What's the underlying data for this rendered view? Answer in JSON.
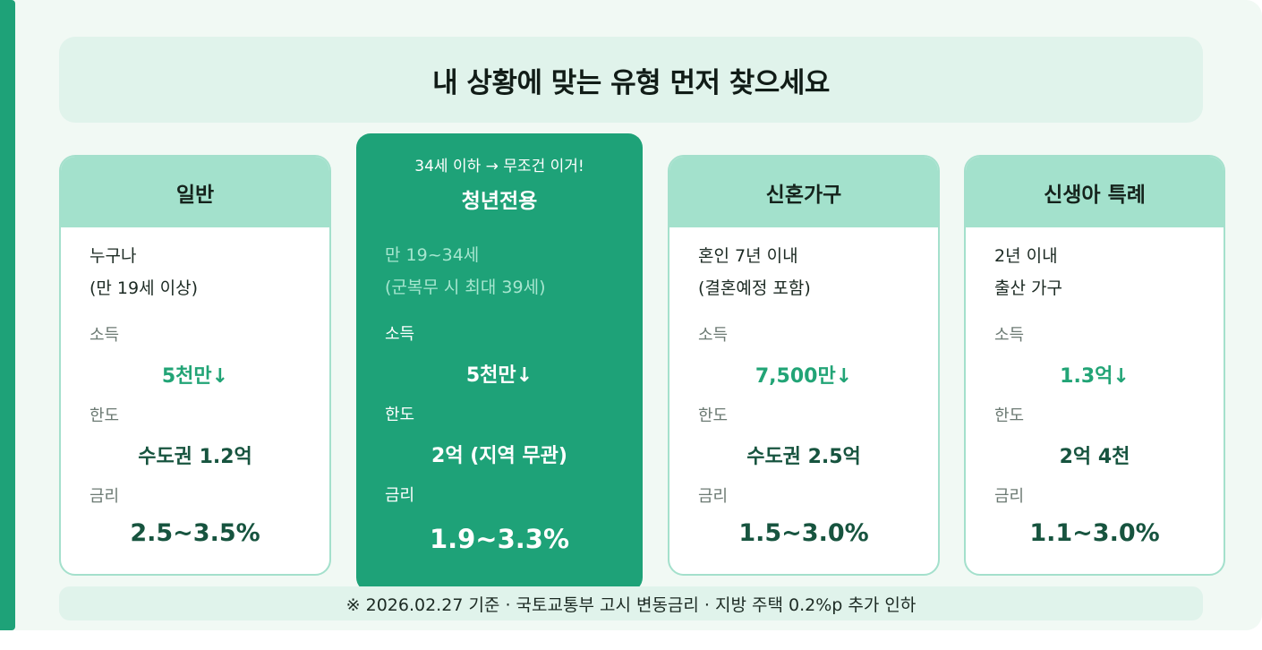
{
  "title": "내 상황에 맞는 유형 먼저 찾으세요",
  "labels": {
    "income": "소득",
    "limit": "한도",
    "rate": "금리"
  },
  "cards": [
    {
      "name": "일반",
      "eligibility_line1": "누구나",
      "eligibility_line2": "(만 19세 이상)",
      "income": "5천만↓",
      "limit": "수도권 1.2억",
      "rate": "2.5~3.5%"
    },
    {
      "tag": "34세 이하 → 무조건 이거!",
      "name": "청년전용",
      "eligibility_line1": "만 19~34세",
      "eligibility_line2": "(군복무 시 최대 39세)",
      "income": "5천만↓",
      "limit": "2억 (지역 무관)",
      "rate": "1.9~3.3%"
    },
    {
      "name": "신혼가구",
      "eligibility_line1": "혼인 7년 이내",
      "eligibility_line2": "(결혼예정 포함)",
      "income": "7,500만↓",
      "limit": "수도권 2.5억",
      "rate": "1.5~3.0%"
    },
    {
      "name": "신생아 특례",
      "eligibility_line1": "2년 이내",
      "eligibility_line2": "출산 가구",
      "income": "1.3억↓",
      "limit": "2억 4천",
      "rate": "1.1~3.0%"
    }
  ],
  "footnote": "※ 2026.02.27 기준 · 국토교통부 고시 변동금리 · 지방 주택 0.2%p 추가 인하",
  "colors": {
    "accent": "#1ea278",
    "card_head": "#a3e1cc",
    "panel_bg": "#f1f9f4"
  }
}
